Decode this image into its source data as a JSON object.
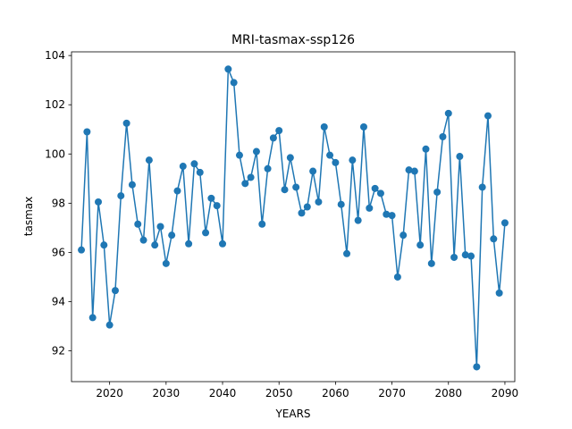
{
  "chart_data": {
    "type": "line",
    "title": "MRI-tasmax-ssp126",
    "xlabel": "YEARS",
    "ylabel": "tasmax",
    "xlim": [
      2013.25,
      2091.75
    ],
    "ylim": [
      90.75,
      104.15
    ],
    "x_ticks": [
      2020,
      2030,
      2040,
      2050,
      2060,
      2070,
      2080,
      2090
    ],
    "y_ticks": [
      92,
      94,
      96,
      98,
      100,
      102,
      104
    ],
    "grid": false,
    "marker": "circle",
    "series_color": "#1f77b4",
    "x": [
      2015,
      2016,
      2017,
      2018,
      2019,
      2020,
      2021,
      2022,
      2023,
      2024,
      2025,
      2026,
      2027,
      2028,
      2029,
      2030,
      2031,
      2032,
      2033,
      2034,
      2035,
      2036,
      2037,
      2038,
      2039,
      2040,
      2041,
      2042,
      2043,
      2044,
      2045,
      2046,
      2047,
      2048,
      2049,
      2050,
      2051,
      2052,
      2053,
      2054,
      2055,
      2056,
      2057,
      2058,
      2059,
      2060,
      2061,
      2062,
      2063,
      2064,
      2065,
      2066,
      2067,
      2068,
      2069,
      2070,
      2071,
      2072,
      2073,
      2074,
      2075,
      2076,
      2077,
      2078,
      2079,
      2080,
      2081,
      2082,
      2083,
      2084,
      2085,
      2086,
      2087,
      2088,
      2089,
      2090
    ],
    "y": [
      96.1,
      100.9,
      93.35,
      98.05,
      96.3,
      93.05,
      94.45,
      98.3,
      101.25,
      98.75,
      97.15,
      96.5,
      99.75,
      96.3,
      97.05,
      95.55,
      96.7,
      98.5,
      99.5,
      96.35,
      99.6,
      99.25,
      96.8,
      98.2,
      97.9,
      96.35,
      103.45,
      102.9,
      99.95,
      98.8,
      99.05,
      100.1,
      97.15,
      99.4,
      100.65,
      100.95,
      98.55,
      99.85,
      98.65,
      97.6,
      97.85,
      99.3,
      98.05,
      101.1,
      99.95,
      99.65,
      97.95,
      95.95,
      99.75,
      97.3,
      101.1,
      97.8,
      98.6,
      98.4,
      97.55,
      97.5,
      95.0,
      96.7,
      99.35,
      99.3,
      96.3,
      100.2,
      95.55,
      98.45,
      100.7,
      101.65,
      95.8,
      99.9,
      95.9,
      95.85,
      91.35,
      98.65,
      101.55,
      96.55,
      94.35,
      97.2
    ]
  }
}
